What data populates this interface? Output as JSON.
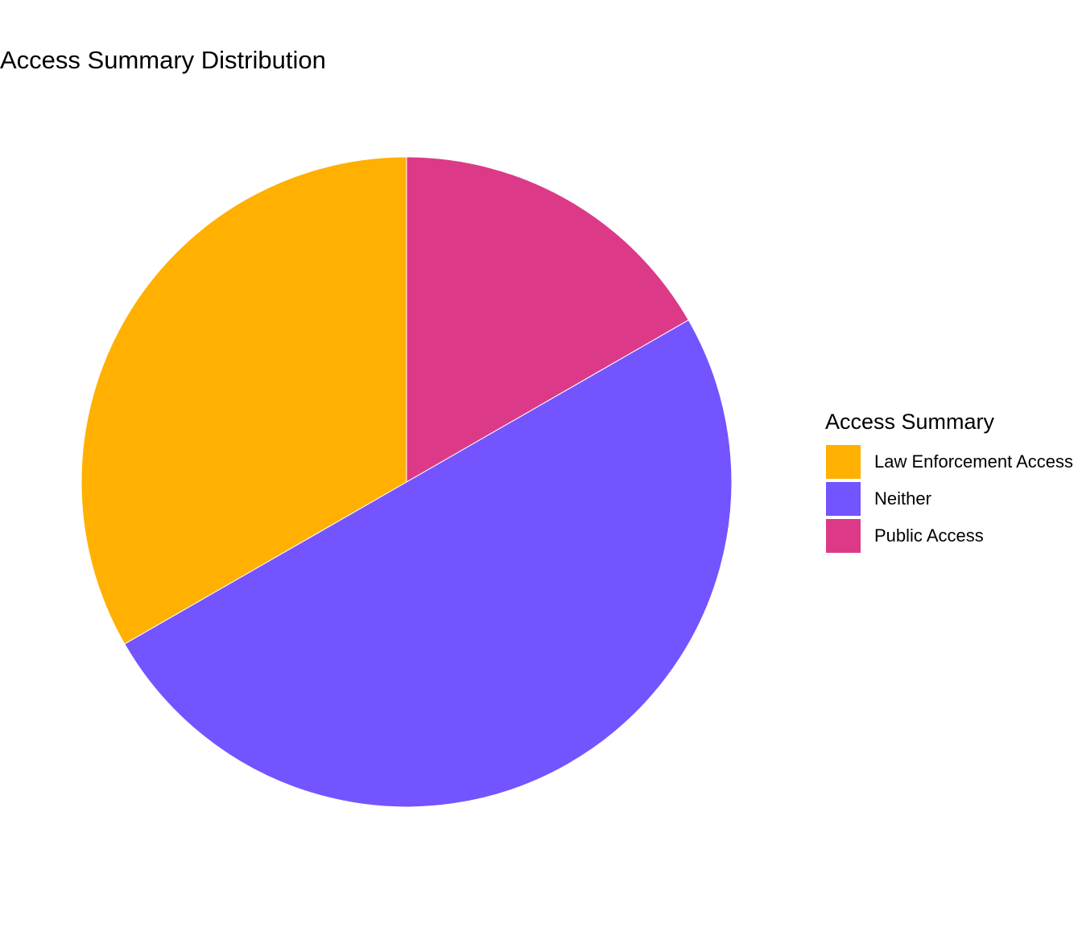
{
  "chart_data": {
    "type": "pie",
    "title": "Access Summary Distribution",
    "legend_title": "Access Summary",
    "categories": [
      "Law Enforcement Access",
      "Neither",
      "Public Access"
    ],
    "values": [
      33.3,
      50,
      16.7
    ],
    "colors": [
      "#ffb000",
      "#7454ff",
      "#dc3a89"
    ],
    "legend": "right"
  }
}
